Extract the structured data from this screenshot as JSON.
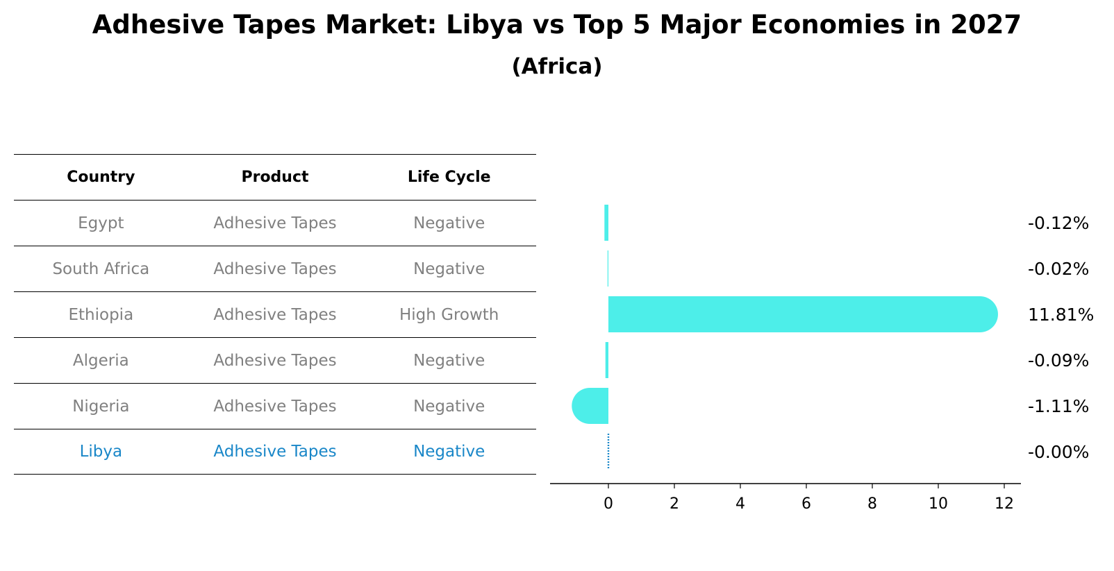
{
  "chart_data": {
    "type": "bar",
    "orientation": "horizontal",
    "title": "Adhesive Tapes Market: Libya vs Top 5 Major Economies in 2027",
    "subtitle": "(Africa)",
    "categories": [
      "Egypt",
      "South Africa",
      "Ethiopia",
      "Algeria",
      "Nigeria",
      "Libya"
    ],
    "values": [
      -0.12,
      -0.02,
      11.81,
      -0.09,
      -1.11,
      -0.0
    ],
    "value_labels": [
      "-0.12%",
      "-0.02%",
      "11.81%",
      "-0.09%",
      "-1.11%",
      "-0.00%"
    ],
    "xlim": [
      -1.8,
      12.5
    ],
    "xticks": [
      0,
      2,
      4,
      6,
      8,
      10,
      12
    ],
    "bar_color": "#4deee9",
    "highlight_country": "Libya",
    "highlight_color": "#1a87c8"
  },
  "table": {
    "headers": [
      "Country",
      "Product",
      "Life Cycle"
    ],
    "rows": [
      [
        "Egypt",
        "Adhesive Tapes",
        "Negative"
      ],
      [
        "South Africa",
        "Adhesive Tapes",
        "Negative"
      ],
      [
        "Ethiopia",
        "Adhesive Tapes",
        "High Growth"
      ],
      [
        "Algeria",
        "Adhesive Tapes",
        "Negative"
      ],
      [
        "Nigeria",
        "Adhesive Tapes",
        "Negative"
      ],
      [
        "Libya",
        "Adhesive Tapes",
        "Negative"
      ]
    ]
  }
}
